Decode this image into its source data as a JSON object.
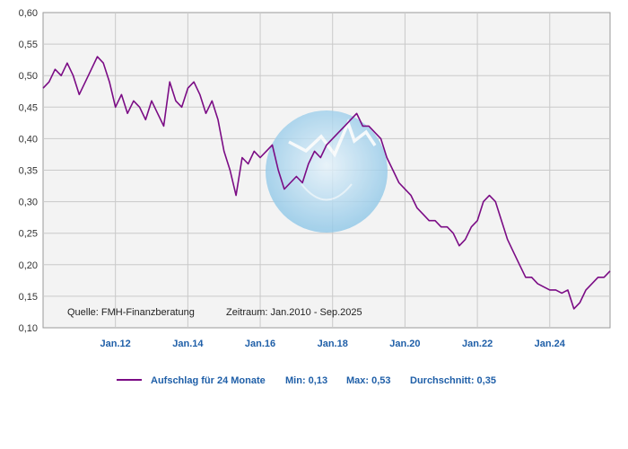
{
  "chart_data": {
    "type": "line",
    "ylim": [
      0.1,
      0.6
    ],
    "xlim": [
      "2010-01",
      "2025-09"
    ],
    "yticks": [
      "0,10",
      "0,15",
      "0,20",
      "0,25",
      "0,30",
      "0,35",
      "0,40",
      "0,45",
      "0,50",
      "0,55",
      "0,60"
    ],
    "xticks": [
      "Jan.12",
      "Jan.14",
      "Jan.16",
      "Jan.18",
      "Jan.20",
      "Jan.22",
      "Jan.24"
    ],
    "grid": true,
    "series": [
      {
        "name": "Aufschlag für 24 Monate",
        "color": "#7b0c85",
        "points": [
          [
            "2010-01",
            0.48
          ],
          [
            "2010-03",
            0.49
          ],
          [
            "2010-05",
            0.51
          ],
          [
            "2010-07",
            0.5
          ],
          [
            "2010-09",
            0.52
          ],
          [
            "2010-11",
            0.5
          ],
          [
            "2011-01",
            0.47
          ],
          [
            "2011-03",
            0.49
          ],
          [
            "2011-05",
            0.51
          ],
          [
            "2011-07",
            0.53
          ],
          [
            "2011-09",
            0.52
          ],
          [
            "2011-11",
            0.49
          ],
          [
            "2012-01",
            0.45
          ],
          [
            "2012-03",
            0.47
          ],
          [
            "2012-05",
            0.44
          ],
          [
            "2012-07",
            0.46
          ],
          [
            "2012-09",
            0.45
          ],
          [
            "2012-11",
            0.43
          ],
          [
            "2013-01",
            0.46
          ],
          [
            "2013-03",
            0.44
          ],
          [
            "2013-05",
            0.42
          ],
          [
            "2013-07",
            0.49
          ],
          [
            "2013-09",
            0.46
          ],
          [
            "2013-11",
            0.45
          ],
          [
            "2014-01",
            0.48
          ],
          [
            "2014-03",
            0.49
          ],
          [
            "2014-05",
            0.47
          ],
          [
            "2014-07",
            0.44
          ],
          [
            "2014-09",
            0.46
          ],
          [
            "2014-11",
            0.43
          ],
          [
            "2015-01",
            0.38
          ],
          [
            "2015-03",
            0.35
          ],
          [
            "2015-05",
            0.31
          ],
          [
            "2015-07",
            0.37
          ],
          [
            "2015-09",
            0.36
          ],
          [
            "2015-11",
            0.38
          ],
          [
            "2016-01",
            0.37
          ],
          [
            "2016-03",
            0.38
          ],
          [
            "2016-05",
            0.39
          ],
          [
            "2016-07",
            0.35
          ],
          [
            "2016-09",
            0.32
          ],
          [
            "2016-11",
            0.33
          ],
          [
            "2017-01",
            0.34
          ],
          [
            "2017-03",
            0.33
          ],
          [
            "2017-05",
            0.36
          ],
          [
            "2017-07",
            0.38
          ],
          [
            "2017-09",
            0.37
          ],
          [
            "2017-11",
            0.39
          ],
          [
            "2018-01",
            0.4
          ],
          [
            "2018-03",
            0.41
          ],
          [
            "2018-05",
            0.42
          ],
          [
            "2018-07",
            0.43
          ],
          [
            "2018-09",
            0.44
          ],
          [
            "2018-11",
            0.42
          ],
          [
            "2019-01",
            0.42
          ],
          [
            "2019-03",
            0.41
          ],
          [
            "2019-05",
            0.4
          ],
          [
            "2019-07",
            0.37
          ],
          [
            "2019-09",
            0.35
          ],
          [
            "2019-11",
            0.33
          ],
          [
            "2020-01",
            0.32
          ],
          [
            "2020-03",
            0.31
          ],
          [
            "2020-05",
            0.29
          ],
          [
            "2020-07",
            0.28
          ],
          [
            "2020-09",
            0.27
          ],
          [
            "2020-11",
            0.27
          ],
          [
            "2021-01",
            0.26
          ],
          [
            "2021-03",
            0.26
          ],
          [
            "2021-05",
            0.25
          ],
          [
            "2021-07",
            0.23
          ],
          [
            "2021-09",
            0.24
          ],
          [
            "2021-11",
            0.26
          ],
          [
            "2022-01",
            0.27
          ],
          [
            "2022-03",
            0.3
          ],
          [
            "2022-05",
            0.31
          ],
          [
            "2022-07",
            0.3
          ],
          [
            "2022-09",
            0.27
          ],
          [
            "2022-11",
            0.24
          ],
          [
            "2023-01",
            0.22
          ],
          [
            "2023-03",
            0.2
          ],
          [
            "2023-05",
            0.18
          ],
          [
            "2023-07",
            0.18
          ],
          [
            "2023-09",
            0.17
          ],
          [
            "2023-11",
            0.165
          ],
          [
            "2024-01",
            0.16
          ],
          [
            "2024-03",
            0.16
          ],
          [
            "2024-05",
            0.155
          ],
          [
            "2024-07",
            0.16
          ],
          [
            "2024-09",
            0.13
          ],
          [
            "2024-11",
            0.14
          ],
          [
            "2025-01",
            0.16
          ],
          [
            "2025-03",
            0.17
          ],
          [
            "2025-05",
            0.18
          ],
          [
            "2025-07",
            0.18
          ],
          [
            "2025-09",
            0.19
          ]
        ]
      }
    ],
    "annotations": {
      "source": "Quelle: FMH-Finanzberatung",
      "period": "Zeitraum: Jan.2010 - Sep.2025"
    },
    "legend": {
      "placement": "bottom",
      "label": "Aufschlag für 24 Monate",
      "min": "Min: 0,13",
      "max": "Max: 0,53",
      "avg": "Durchschnitt: 0,35"
    }
  }
}
